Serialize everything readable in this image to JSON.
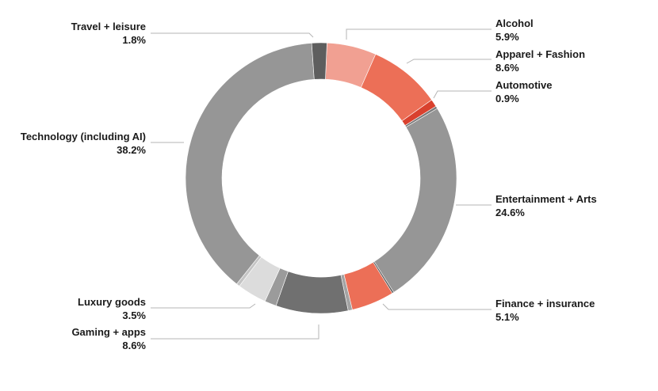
{
  "chart_data": {
    "type": "pie",
    "variant": "donut",
    "title": "",
    "slices": [
      {
        "label": "Alcohol",
        "value_label": "5.9%",
        "value": 5.9,
        "color": "#f1a092",
        "side": "right"
      },
      {
        "label": "Apparel + Fashion",
        "value_label": "8.6%",
        "value": 8.6,
        "color": "#ec6f57",
        "side": "right"
      },
      {
        "label": "Automotive",
        "value_label": "0.9%",
        "value": 0.9,
        "color": "#d9412e",
        "side": "right"
      },
      {
        "label": "",
        "value_label": "",
        "value": 0.3,
        "color": "#7a7a7a",
        "side": "none"
      },
      {
        "label": "Entertainment + Arts",
        "value_label": "24.6%",
        "value": 24.6,
        "color": "#969696",
        "side": "right"
      },
      {
        "label": "",
        "value_label": "",
        "value": 0.2,
        "color": "#555555",
        "side": "none"
      },
      {
        "label": "Finance + insurance",
        "value_label": "5.1%",
        "value": 5.1,
        "color": "#ec6f57",
        "side": "right"
      },
      {
        "label": "",
        "value_label": "",
        "value": 0.5,
        "color": "#a3a3a3",
        "side": "none"
      },
      {
        "label": "Gaming + apps",
        "value_label": "8.6%",
        "value": 8.6,
        "color": "#707070",
        "side": "left"
      },
      {
        "label": "",
        "value_label": "",
        "value": 1.4,
        "color": "#9b9b9b",
        "side": "none"
      },
      {
        "label": "Luxury goods",
        "value_label": "3.5%",
        "value": 3.5,
        "color": "#dcdcdc",
        "side": "left"
      },
      {
        "label": "",
        "value_label": "",
        "value": 0.4,
        "color": "#c4c4c4",
        "side": "none"
      },
      {
        "label": "Technology (including AI)",
        "value_label": "38.2%",
        "value": 38.2,
        "color": "#969696",
        "side": "left"
      },
      {
        "label": "Travel + leisure",
        "value_label": "1.8%",
        "value": 1.8,
        "color": "#5e5e5e",
        "side": "left"
      }
    ],
    "legend": "none",
    "labels": "outside-with-leaders"
  }
}
